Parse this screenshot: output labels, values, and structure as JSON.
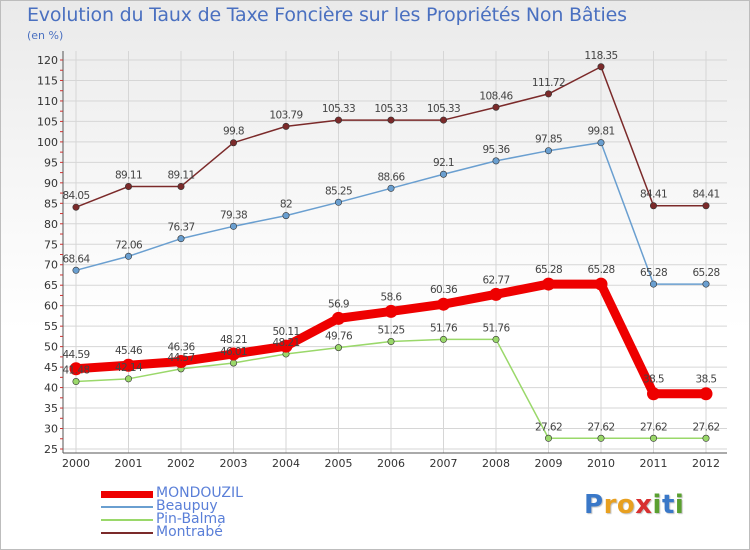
{
  "chart_data": {
    "type": "line",
    "title": "Evolution du Taux de Taxe Foncière sur les Propriétés Non Bâties",
    "ylabel": "(en %)",
    "xlabel": "",
    "ylim": [
      25,
      120
    ],
    "yticks": [
      25,
      30,
      35,
      40,
      45,
      50,
      55,
      60,
      65,
      70,
      75,
      80,
      85,
      90,
      95,
      100,
      105,
      110,
      115,
      120
    ],
    "categories": [
      "2000",
      "2001",
      "2002",
      "2003",
      "2004",
      "2005",
      "2006",
      "2007",
      "2008",
      "2009",
      "2010",
      "2011",
      "2012"
    ],
    "series": [
      {
        "name": "Montrabé",
        "color": "#7b2a2a",
        "labels": [
          "84.05",
          "89.11",
          "89.11",
          "99.8",
          "103.79",
          "105.33",
          "105.33",
          "105.33",
          "108.46",
          "111.72",
          "118.35",
          "84.41",
          "84.41"
        ],
        "values": [
          84.05,
          89.11,
          89.11,
          99.8,
          103.79,
          105.33,
          105.33,
          105.33,
          108.46,
          111.72,
          118.35,
          84.41,
          84.41
        ]
      },
      {
        "name": "Beaupuy",
        "color": "#6a9fd0",
        "labels": [
          "68.64",
          "72.06",
          "76.37",
          "79.38",
          "82",
          "85.25",
          "88.66",
          "92.1",
          "95.36",
          "97.85",
          "99.81",
          "65.28",
          "65.28"
        ],
        "values": [
          68.64,
          72.06,
          76.37,
          79.38,
          82,
          85.25,
          88.66,
          92.1,
          95.36,
          97.85,
          99.81,
          65.28,
          65.28
        ]
      },
      {
        "name": "Pin-Balma",
        "color": "#9ad86a",
        "labels": [
          "41.48",
          "42.14",
          "44.57",
          "46.01",
          "48.21",
          "49.76",
          "51.25",
          "51.76",
          "51.76",
          "27.62",
          "27.62",
          "27.62",
          "27.62"
        ],
        "values": [
          41.48,
          42.14,
          44.57,
          46.01,
          48.21,
          49.76,
          51.25,
          51.76,
          51.76,
          27.62,
          27.62,
          27.62,
          27.62
        ]
      },
      {
        "name": "MONDOUZIL",
        "color": "#ee0000",
        "labels": [
          "44.59",
          "45.46",
          "46.36",
          "48.21",
          "50.11",
          "56.9",
          "58.6",
          "60.36",
          "62.77",
          "65.28",
          "65.28",
          "38.5",
          "38.5"
        ],
        "values": [
          44.59,
          45.46,
          46.36,
          48.21,
          50.11,
          56.9,
          58.6,
          60.36,
          62.77,
          65.28,
          65.28,
          38.5,
          38.5
        ]
      }
    ]
  },
  "legend": {
    "items": [
      {
        "name": "MONDOUZIL",
        "color": "#ee0000"
      },
      {
        "name": "Beaupuy",
        "color": "#6a9fd0"
      },
      {
        "name": "Pin-Balma",
        "color": "#9ad86a"
      },
      {
        "name": "Montrabé",
        "color": "#7b2a2a"
      }
    ]
  },
  "logo": {
    "letters": [
      "P",
      "r",
      "o",
      "x",
      "i",
      "t",
      "i"
    ],
    "colors": [
      "#3a78c8",
      "#e8a020",
      "#e8a020",
      "#d83030",
      "#5aa030",
      "#3a78c8",
      "#5aa030"
    ]
  }
}
